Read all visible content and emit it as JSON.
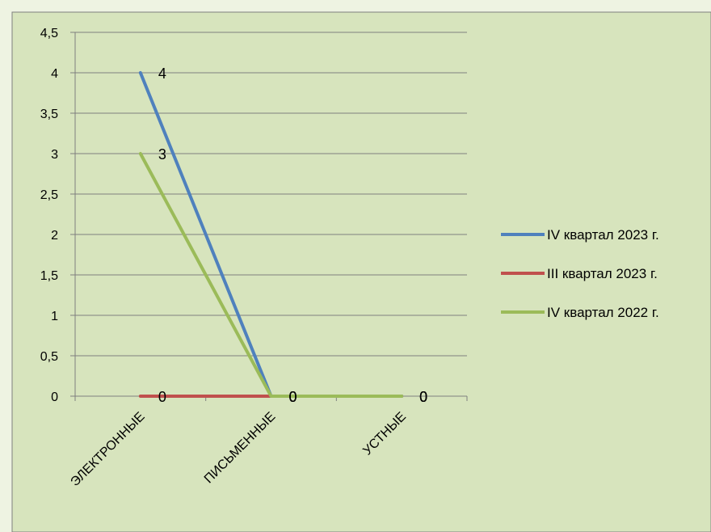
{
  "chart_data": {
    "type": "line",
    "categories": [
      "ЭЛЕКТРОННЫЕ",
      "ПИСЬМЕННЫЕ",
      "УСТНЫЕ"
    ],
    "series": [
      {
        "name": "IV квартал 2023 г.",
        "color": "#4f81bd",
        "values": [
          4,
          0,
          0
        ]
      },
      {
        "name": "III квартал 2023 г.",
        "color": "#c0504d",
        "values": [
          0,
          0,
          0
        ]
      },
      {
        "name": "IV квартал 2022 г.",
        "color": "#9bbb59",
        "values": [
          3,
          0,
          0
        ]
      }
    ],
    "y_ticks": [
      "0",
      "0,5",
      "1",
      "1,5",
      "2",
      "2,5",
      "3",
      "3,5",
      "4",
      "4,5"
    ],
    "ylim": [
      0,
      4.5
    ],
    "data_labels": [
      {
        "series": 0,
        "point": 0,
        "text": "4"
      },
      {
        "series": 0,
        "point": 1,
        "text": "0"
      },
      {
        "series": 0,
        "point": 2,
        "text": "0"
      },
      {
        "series": 1,
        "point": 0,
        "text": "0"
      },
      {
        "series": 1,
        "point": 1,
        "text": "0"
      },
      {
        "series": 1,
        "point": 2,
        "text": "0"
      },
      {
        "series": 2,
        "point": 0,
        "text": "3"
      },
      {
        "series": 2,
        "point": 1,
        "text": "0"
      },
      {
        "series": 2,
        "point": 2,
        "text": "0"
      }
    ],
    "grid": true,
    "legend_position": "right",
    "colors": {
      "background": "#d7e4bd",
      "plot_background": "#d7e4bd",
      "frame": "#7f7f7f",
      "grid": "#7f7f7f"
    }
  }
}
